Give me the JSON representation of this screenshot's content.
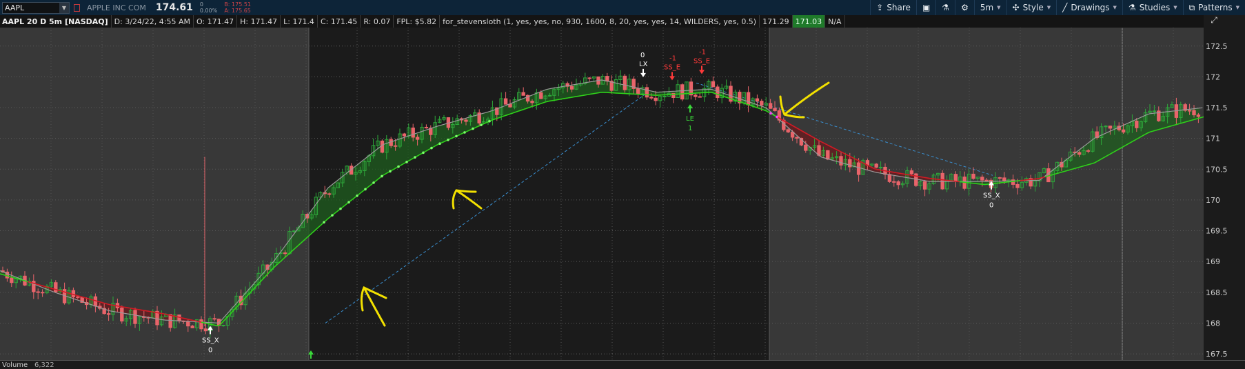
{
  "header": {
    "symbol": "AAPL",
    "company": "APPLE INC COM",
    "last": "174.61",
    "change": "0",
    "change_pct": "0.00%",
    "bid": "B: 175.51",
    "ask": "A: 175.65",
    "buttons": [
      {
        "label": "Share",
        "icon": "share-icon"
      },
      {
        "label": "",
        "icon": "screenshot-icon"
      },
      {
        "label": "",
        "icon": "flask-icon"
      },
      {
        "label": "",
        "icon": "gear-icon"
      },
      {
        "label": "5m",
        "icon": ""
      },
      {
        "label": "Style",
        "icon": "style-icon"
      },
      {
        "label": "Drawings",
        "icon": "pencil-icon"
      },
      {
        "label": "Studies",
        "icon": "flask-icon"
      },
      {
        "label": "Patterns",
        "icon": "patterns-icon"
      }
    ]
  },
  "info": {
    "title": "AAPL 20 D 5m [NASDAQ]",
    "date": "D: 3/24/22, 4:55 AM",
    "open": "O: 171.47",
    "high": "H: 171.47",
    "low": "L: 171.4",
    "close": "C: 171.45",
    "range": "R: 0.07",
    "fpl": "FPL: $5.82",
    "study": "for_stevensloth (1, yes, yes, no, 930, 1600, 8, 20, yes, yes, 14, WILDERS, yes, 0.5)",
    "v1": "171.29",
    "v2": "171.03",
    "v3": "N/A"
  },
  "volume": {
    "label": "Volume",
    "value": "6,322"
  },
  "colors": {
    "up": "#2ea83a",
    "down": "#e8646a",
    "fast_avg": "#9a9a9a",
    "slow_avg": "#2fd21a",
    "bear_slow": "#d21a24",
    "annotation": "#f2e000",
    "bg_day": "#1b1b1b",
    "bg_session": "#383838"
  },
  "chart_data": {
    "type": "candlestick",
    "ylim": [
      167.4,
      172.8
    ],
    "y_ticks": [
      "167.5",
      "168",
      "168.5",
      "169",
      "169.5",
      "170",
      "170.5",
      "171",
      "171.5",
      "172",
      "172.5"
    ],
    "series": [
      {
        "name": "",
        "role": "fast moving average",
        "y": [
          168.85,
          168.5,
          168.2,
          168.05,
          168.0,
          169.0,
          170.2,
          170.9,
          171.2,
          171.45,
          171.8,
          171.95,
          171.75,
          171.8,
          171.5,
          170.7,
          170.45,
          170.3,
          170.3,
          170.32,
          171.0,
          171.4,
          171.5
        ]
      },
      {
        "name": "",
        "role": "slow moving average",
        "y": [
          168.8,
          168.55,
          168.3,
          168.15,
          167.95,
          168.9,
          169.7,
          170.4,
          170.9,
          171.3,
          171.6,
          171.75,
          171.7,
          171.75,
          171.45,
          170.95,
          170.5,
          170.35,
          170.25,
          170.35,
          170.6,
          171.1,
          171.35
        ]
      }
    ],
    "signals": [
      {
        "label": "SS_X",
        "qty": "0",
        "price": 168.0,
        "type": "exit-short"
      },
      {
        "label": "LX",
        "qty": "0",
        "price": 171.95,
        "type": "exit-long"
      },
      {
        "label": "SS_E",
        "qty": "-1",
        "price": 171.9,
        "type": "short-entry"
      },
      {
        "label": "SS_E",
        "qty": "-1",
        "price": 172.0,
        "type": "short-entry"
      },
      {
        "label": "LE",
        "qty": "1",
        "price": 171.6,
        "type": "long-entry"
      },
      {
        "label": "SS_X",
        "qty": "0",
        "price": 170.35,
        "type": "exit-short"
      }
    ]
  }
}
